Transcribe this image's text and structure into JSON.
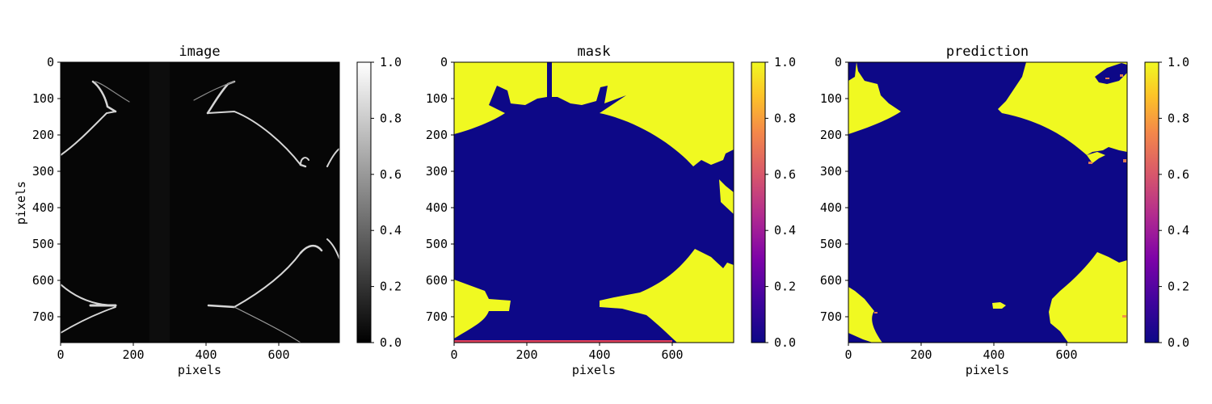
{
  "chart_data": [
    {
      "type": "heatmap",
      "title": "image",
      "xlabel": "pixels",
      "ylabel": "pixels",
      "xlim": [
        0,
        768
      ],
      "ylim": [
        768,
        0
      ],
      "xticks": [
        "0",
        "200",
        "400",
        "600"
      ],
      "yticks": [
        "0",
        "100",
        "200",
        "300",
        "400",
        "500",
        "600",
        "700"
      ],
      "colormap": "gray",
      "colorbar": {
        "range": [
          0.0,
          1.0
        ],
        "ticks": [
          "0.0",
          "0.2",
          "0.4",
          "0.6",
          "0.8",
          "1.0"
        ]
      }
    },
    {
      "type": "heatmap",
      "title": "mask",
      "xlabel": "pixels",
      "ylabel": "",
      "xlim": [
        0,
        768
      ],
      "ylim": [
        768,
        0
      ],
      "xticks": [
        "0",
        "200",
        "400",
        "600"
      ],
      "yticks": [
        "0",
        "100",
        "200",
        "300",
        "400",
        "500",
        "600",
        "700"
      ],
      "colormap": "plasma",
      "colorbar": {
        "range": [
          0.0,
          1.0
        ],
        "ticks": [
          "0.0",
          "0.2",
          "0.4",
          "0.6",
          "0.8",
          "1.0"
        ]
      }
    },
    {
      "type": "heatmap",
      "title": "prediction",
      "xlabel": "pixels",
      "ylabel": "",
      "xlim": [
        0,
        768
      ],
      "ylim": [
        768,
        0
      ],
      "xticks": [
        "0",
        "200",
        "400",
        "600"
      ],
      "yticks": [
        "0",
        "100",
        "200",
        "300",
        "400",
        "500",
        "600",
        "700"
      ],
      "colormap": "plasma",
      "colorbar": {
        "range": [
          0.0,
          1.0
        ],
        "ticks": [
          "0.0",
          "0.2",
          "0.4",
          "0.6",
          "0.8",
          "1.0"
        ]
      }
    }
  ],
  "colors": {
    "background_low": "#0d0887",
    "background_high": "#f0f921",
    "image_dark": "#050505",
    "image_edge": "#d8d8d8"
  }
}
